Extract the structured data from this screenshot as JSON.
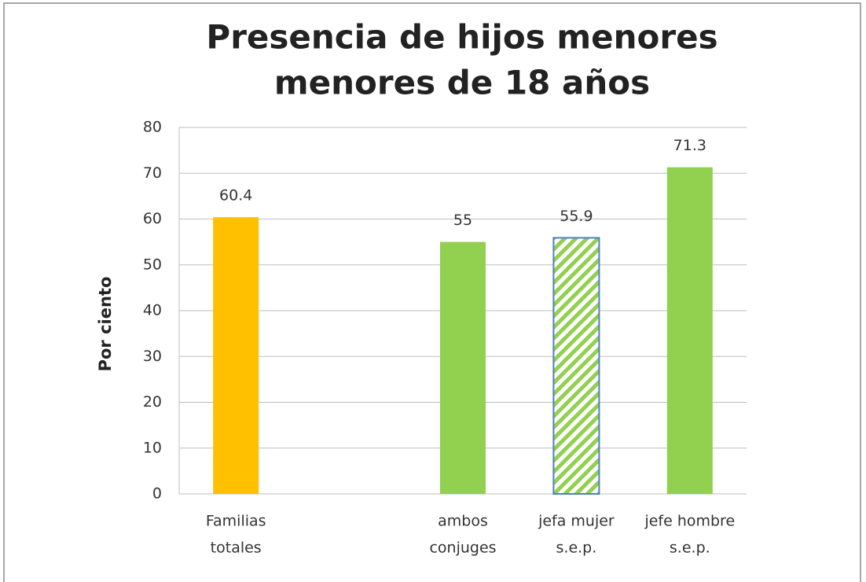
{
  "chart_data": {
    "type": "bar",
    "title": [
      "Presencia de hijos menores",
      "menores de 18 años"
    ],
    "y_label": "Por ciento",
    "categories": [
      [
        "Familias",
        "totales"
      ],
      null,
      [
        "ambos",
        "conjuges"
      ],
      [
        "jefa mujer",
        "s.e.p."
      ],
      [
        "jefe hombre",
        "s.e.p."
      ]
    ],
    "values": [
      60.4,
      null,
      55,
      55.9,
      71.3
    ],
    "colors": [
      "#ffc000",
      null,
      "#92d050",
      "#92d050",
      "#92d050"
    ],
    "patterns": [
      "solid",
      null,
      "solid",
      "hatch",
      "solid"
    ],
    "ylim": [
      0,
      80
    ],
    "yticks": [
      0,
      10,
      20,
      30,
      40,
      50,
      60,
      70,
      80
    ],
    "grid": true
  }
}
